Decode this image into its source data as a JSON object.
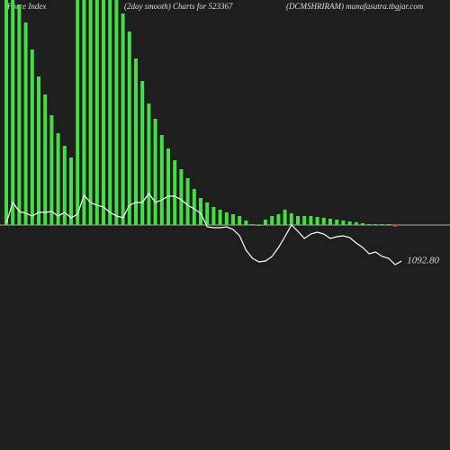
{
  "chart_data": {
    "type": "bar",
    "title_left": "(Force  Index",
    "title_mid": "(2day smooth) Charts for 523367",
    "title_right": "(DCMSHRIRAM) munafasutra.tbgjar.com",
    "background": "#1e1e1e",
    "color": "#44dd44",
    "negative_color": "#dd3333",
    "zero_line_color": "#aaaaaa",
    "ylim": [
      -250,
      250
    ],
    "values": [
      250,
      250,
      245,
      225,
      195,
      165,
      145,
      122,
      102,
      88,
      75,
      250,
      250,
      250,
      250,
      250,
      250,
      250,
      235,
      215,
      185,
      160,
      135,
      118,
      100,
      85,
      72,
      62,
      52,
      40,
      30,
      25,
      20,
      17,
      14,
      12,
      10,
      5,
      1,
      0,
      6,
      10,
      12,
      17,
      13,
      10,
      10,
      10,
      9,
      8,
      7,
      6,
      5,
      4,
      3,
      2,
      1,
      1,
      1,
      1,
      -2,
      -1
    ],
    "line": {
      "color": "#ffffff",
      "y2lim": [
        882.8,
        1382.8
      ],
      "values": [
        1134.8,
        1157.8,
        1147.8,
        1145.8,
        1142.8,
        1146.8,
        1146.8,
        1147.8,
        1142.8,
        1146.8,
        1140.8,
        1144.8,
        1165.8,
        1157.8,
        1154.8,
        1152.8,
        1146.8,
        1142.8,
        1140.8,
        1154.8,
        1157.8,
        1157.8,
        1167.8,
        1157.8,
        1160.8,
        1164.8,
        1164.8,
        1160.8,
        1154.8,
        1150.8,
        1145.8,
        1130.8,
        1129.8,
        1129.8,
        1130.8,
        1127.8,
        1120.8,
        1104.8,
        1095.8,
        1091.8,
        1092.8,
        1097.8,
        1107.8,
        1119.8,
        1132.8,
        1125.8,
        1117.8,
        1122.8,
        1124.8,
        1122.8,
        1117.8,
        1119.8,
        1120.8,
        1118.8,
        1112.8,
        1107.8,
        1100.8,
        1102.8,
        1097.8,
        1095.8,
        1088.8,
        1092.8
      ],
      "last_label": "1092.80"
    }
  }
}
